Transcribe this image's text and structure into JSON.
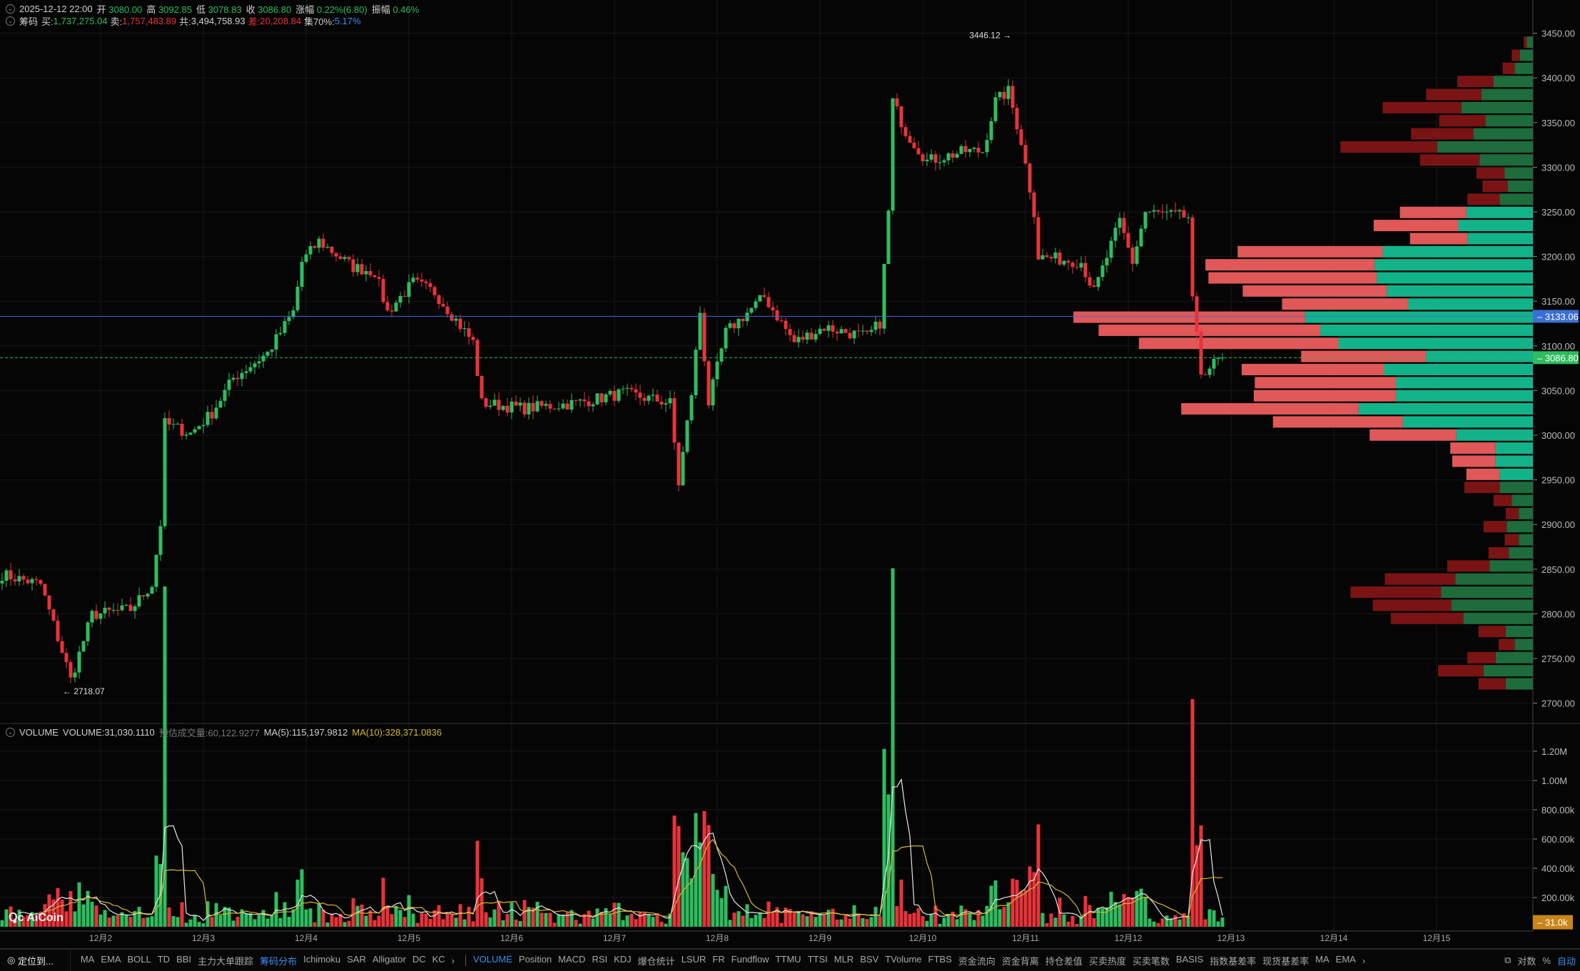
{
  "header": {
    "datetime": "2025-12-12 22:00",
    "open_label": "开",
    "open": "3080.00",
    "high_label": "高",
    "high": "3092.85",
    "low_label": "低",
    "low": "3078.83",
    "close_label": "收",
    "close": "3086.80",
    "change_label": "涨幅",
    "change": "0.22%(6.80)",
    "amp_label": "振幅",
    "amp": "0.46%"
  },
  "chips": {
    "title": "筹码",
    "buy_label": "买:",
    "buy": "1,737,275.04",
    "sell_label": "卖:",
    "sell": "1,757,483.89",
    "total_label": "共:",
    "total": "3,494,758.93",
    "diff_label": "差:",
    "diff": "20,208.84",
    "conc_label": "集70%:",
    "conc": "5.17%"
  },
  "volume_header": {
    "title": "VOLUME",
    "volume": "VOLUME:31,030.1110",
    "estimate": "预估成交量:60,122.9277",
    "ma5": "MA(5):115,197.9812",
    "ma10": "MA(10):328,371.0836"
  },
  "colors": {
    "up": "#2ebd5f",
    "down": "#e8333a",
    "ma5": "#e6e6e6",
    "ma10": "#d4b82c",
    "price_line": "#3b6fd1",
    "last_price": "#2ebd5f",
    "volume_tag": "#c8861a",
    "profile_buy": "#13b38a",
    "profile_sell": "#e05858",
    "profile_buy_dim": "#1e6b3c",
    "profile_sell_dim": "#7a1414"
  },
  "chart_data": {
    "type": "candlestick",
    "interval": "1h",
    "price_ticks": [
      "3450.00",
      "3400.00",
      "3350.00",
      "3300.00",
      "3250.00",
      "3200.00",
      "3150.00",
      "3100.00",
      "3050.00",
      "3000.00",
      "2950.00",
      "2900.00",
      "2850.00",
      "2800.00",
      "2750.00",
      "2700.00"
    ],
    "ylim": [
      2700,
      3450
    ],
    "date_ticks": [
      "12月2",
      "12月3",
      "12月4",
      "12月5",
      "12月6",
      "12月7",
      "12月8",
      "12月9",
      "12月10",
      "12月11",
      "12月12",
      "12月13",
      "12月14",
      "12月15"
    ],
    "price_path": [
      [
        "12-01 01:00",
        2844
      ],
      [
        "12-01 10:00",
        2833
      ],
      [
        "12-01 16:00",
        2743
      ],
      [
        "12-01 17:00",
        2726
      ],
      [
        "12-01 22:00",
        2799
      ],
      [
        "12-02 07:00",
        2805
      ],
      [
        "12-02 12:00",
        2833
      ],
      [
        "12-02 14:00",
        2901
      ],
      [
        "12-02 15:00",
        3013
      ],
      [
        "12-02 21:00",
        3002
      ],
      [
        "12-03 02:00",
        3025
      ],
      [
        "12-03 07:00",
        3064
      ],
      [
        "12-03 15:00",
        3092
      ],
      [
        "12-03 21:00",
        3138
      ],
      [
        "12-03 23:00",
        3194
      ],
      [
        "12-04 03:00",
        3217
      ],
      [
        "12-04 11:00",
        3188
      ],
      [
        "12-04 16:00",
        3183
      ],
      [
        "12-04 19:00",
        3138
      ],
      [
        "12-05 01:00",
        3171
      ],
      [
        "12-05 06:00",
        3160
      ],
      [
        "12-05 15:00",
        3104
      ],
      [
        "12-05 17:00",
        3036
      ],
      [
        "12-06 03:00",
        3030
      ],
      [
        "12-06 15:00",
        3036
      ],
      [
        "12-07 02:00",
        3047
      ],
      [
        "12-07 13:00",
        3036
      ],
      [
        "12-07 15:00",
        2946
      ],
      [
        "12-07 18:00",
        3047
      ],
      [
        "12-07 20:00",
        3138
      ],
      [
        "12-07 22:00",
        3036
      ],
      [
        "12-08 02:00",
        3115
      ],
      [
        "12-08 11:00",
        3155
      ],
      [
        "12-08 18:00",
        3104
      ],
      [
        "12-09 01:00",
        3121
      ],
      [
        "12-09 11:00",
        3110
      ],
      [
        "12-09 14:00",
        3126
      ],
      [
        "12-09 16:00",
        3250
      ],
      [
        "12-09 17:00",
        3374
      ],
      [
        "12-09 20:00",
        3340
      ],
      [
        "12-10 01:00",
        3307
      ],
      [
        "12-10 10:00",
        3318
      ],
      [
        "12-10 14:00",
        3318
      ],
      [
        "12-10 17:00",
        3374
      ],
      [
        "12-10 20:00",
        3385
      ],
      [
        "12-10 23:00",
        3329
      ],
      [
        "12-11 02:00",
        3250
      ],
      [
        "12-11 03:00",
        3200
      ],
      [
        "12-11 13:00",
        3194
      ],
      [
        "12-11 16:00",
        3160
      ],
      [
        "12-11 22:00",
        3239
      ],
      [
        "12-12 01:00",
        3194
      ],
      [
        "12-12 04:00",
        3250
      ],
      [
        "12-12 14:00",
        3244
      ],
      [
        "12-12 15:00",
        3149
      ],
      [
        "12-12 17:00",
        3070
      ],
      [
        "12-12 22:00",
        3086.8
      ]
    ],
    "high_marker": {
      "label": "3446.12 →",
      "price": 3446.12,
      "time": "12-10 19:00"
    },
    "low_marker": {
      "label": "← 2718.07",
      "price": 2718.07,
      "time": "12-01 16:00"
    },
    "price_line": {
      "label": "3133.06",
      "price": 3133.06
    },
    "last_price": {
      "label": "3086.80",
      "price": 3086.8
    },
    "profile": {
      "price_top": 3440,
      "price_step": 14.66,
      "value_area": [
        2942,
        3264
      ],
      "buy": [
        6,
        13,
        18,
        39,
        51,
        71,
        47,
        59,
        95,
        53,
        28,
        25,
        33,
        66,
        74,
        65,
        149,
        157,
        155,
        145,
        124,
        226,
        211,
        193,
        106,
        148,
        136,
        136,
        173,
        129,
        76,
        37,
        37,
        33,
        33,
        21,
        14,
        26,
        14,
        24,
        43,
        77,
        91,
        81,
        69,
        27,
        18,
        37,
        49,
        27
      ],
      "sell": [
        3,
        8,
        12,
        36,
        55,
        78,
        46,
        62,
        96,
        59,
        28,
        25,
        32,
        66,
        84,
        57,
        144,
        168,
        167,
        143,
        125,
        230,
        220,
        198,
        124,
        141,
        140,
        141,
        176,
        129,
        86,
        45,
        43,
        33,
        35,
        18,
        13,
        23,
        14,
        20,
        42,
        70,
        90,
        78,
        72,
        27,
        16,
        28,
        45,
        27
      ]
    },
    "volume_ticks": [
      "1.20M",
      "1.00M",
      "800.00k",
      "600.00k",
      "400.00k",
      "200.00k"
    ],
    "volume_ylim": [
      0,
      1300000
    ],
    "volume_last": {
      "label": "31.0k",
      "value": 31030
    }
  },
  "toolbar": {
    "locate": "定位到...",
    "main_indicators": [
      "MA",
      "EMA",
      "BOLL",
      "TD",
      "BBI",
      "主力大单跟踪",
      "筹码分布",
      "Ichimoku",
      "SAR",
      "Alligator",
      "DC",
      "KC"
    ],
    "main_active": "筹码分布",
    "sub_indicators": [
      "VOLUME",
      "Position",
      "MACD",
      "RSI",
      "KDJ",
      "爆仓统计",
      "LSUR",
      "FR",
      "Fundflow",
      "TTMU",
      "TTSI",
      "MLR",
      "BSV",
      "TVolume",
      "FTBS",
      "资金流向",
      "资金背离",
      "持仓差值",
      "买卖热度",
      "买卖笔数",
      "BASIS",
      "指数基差率",
      "现货基差率",
      "MA",
      "EMA"
    ],
    "sub_active": "VOLUME",
    "more": "›",
    "log_label": "对数",
    "pct_label": "%",
    "auto_label": "自动"
  },
  "logo": "AiCoin"
}
